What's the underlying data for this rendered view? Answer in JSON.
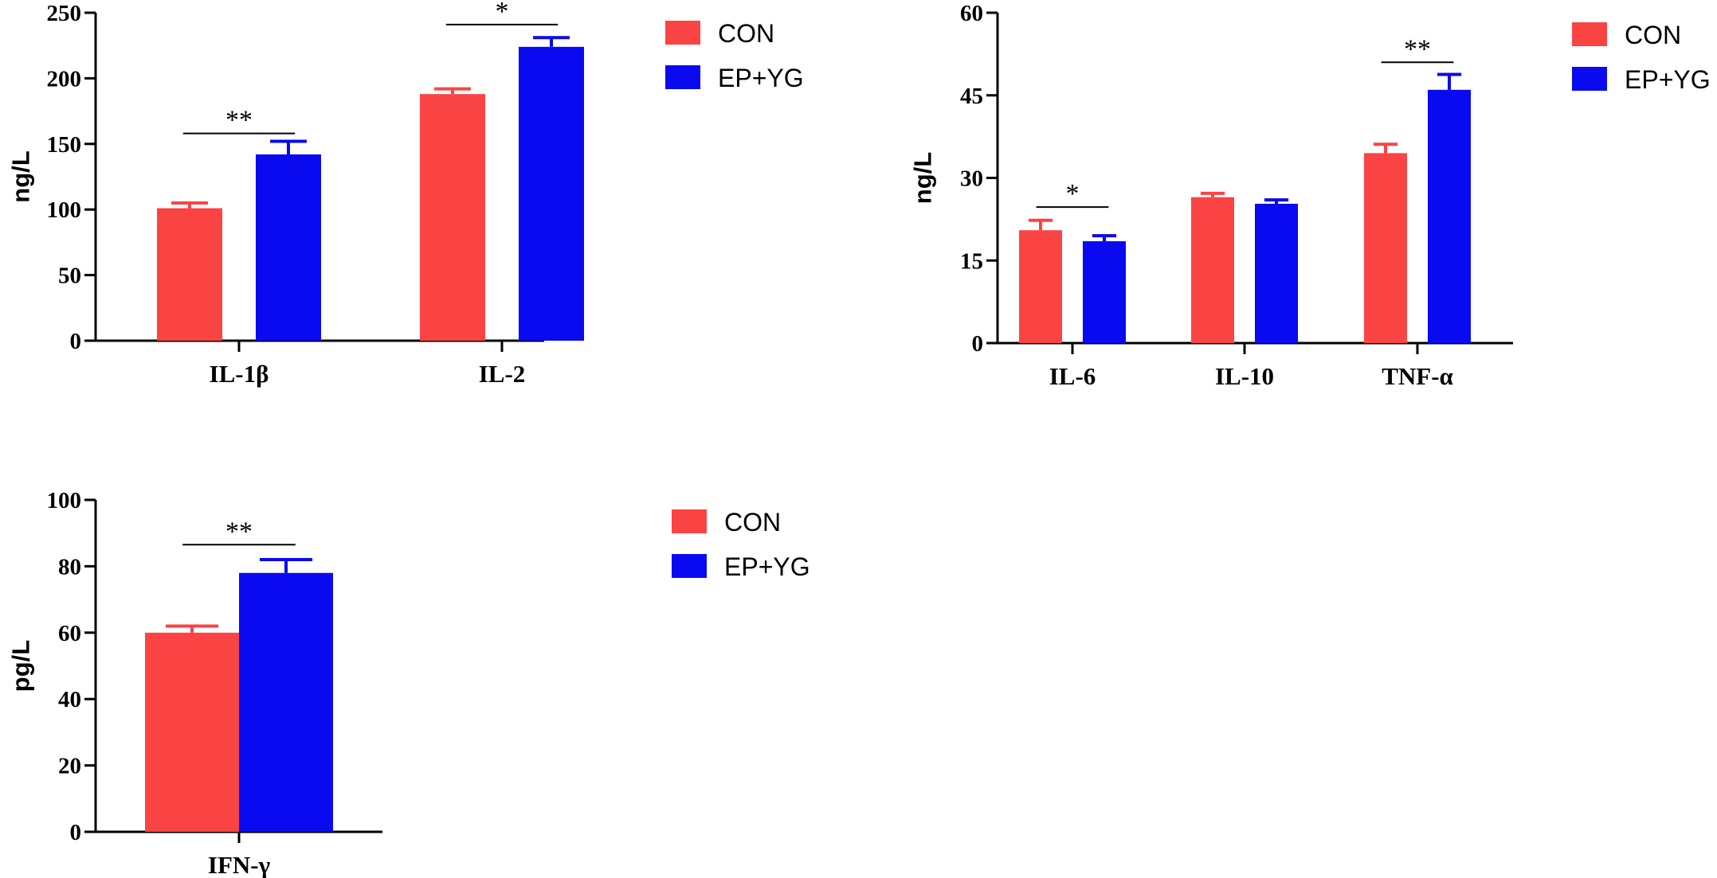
{
  "chart_data": [
    {
      "type": "bar",
      "id": "chart-a",
      "ylabel": "ng/L",
      "ylim": [
        0,
        250
      ],
      "yticks": [
        0,
        50,
        100,
        150,
        200,
        250
      ],
      "categories": [
        "IL-1β",
        "IL-2"
      ],
      "series": [
        {
          "name": "CON",
          "color": "#fa4444",
          "values": [
            101,
            188
          ],
          "errors": [
            4,
            4
          ]
        },
        {
          "name": "EP+YG",
          "color": "#0a0af0",
          "values": [
            142,
            224
          ],
          "errors": [
            10,
            7
          ]
        }
      ],
      "significance": [
        {
          "category_index": 0,
          "label": "**",
          "y": 158
        },
        {
          "category_index": 1,
          "label": "*",
          "y": 241
        }
      ],
      "legend": [
        "CON",
        "EP+YG"
      ]
    },
    {
      "type": "bar",
      "id": "chart-b",
      "ylabel": "ng/L",
      "ylim": [
        0,
        60
      ],
      "yticks": [
        0,
        15,
        30,
        45,
        60
      ],
      "categories": [
        "IL-6",
        "IL-10",
        "TNF-α"
      ],
      "series": [
        {
          "name": "CON",
          "color": "#fa4444",
          "values": [
            20.5,
            26.5,
            34.5
          ],
          "errors": [
            1.8,
            0.7,
            1.6
          ]
        },
        {
          "name": "EP+YG",
          "color": "#0a0af0",
          "values": [
            18.5,
            25.3,
            46
          ],
          "errors": [
            1.0,
            0.7,
            2.8
          ]
        }
      ],
      "significance": [
        {
          "category_index": 0,
          "label": "*",
          "y": 24.7
        },
        {
          "category_index": 2,
          "label": "**",
          "y": 51
        }
      ],
      "legend": [
        "CON",
        "EP+YG"
      ]
    },
    {
      "type": "bar",
      "id": "chart-c",
      "ylabel": "pg/L",
      "ylim": [
        0,
        100
      ],
      "yticks": [
        0,
        20,
        40,
        60,
        80,
        100
      ],
      "categories": [
        "IFN-γ"
      ],
      "series": [
        {
          "name": "CON",
          "color": "#fa4444",
          "values": [
            60
          ],
          "errors": [
            2
          ]
        },
        {
          "name": "EP+YG",
          "color": "#0a0af0",
          "values": [
            78
          ],
          "errors": [
            4
          ]
        }
      ],
      "significance": [
        {
          "category_index": 0,
          "label": "**",
          "y": 86.5
        }
      ],
      "legend": [
        "CON",
        "EP+YG"
      ]
    }
  ]
}
